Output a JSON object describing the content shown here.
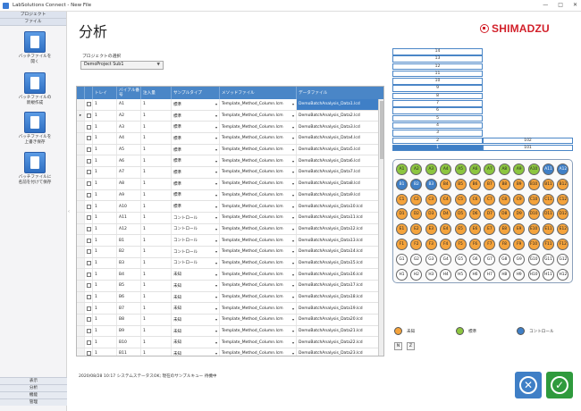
{
  "window": {
    "title": "LabSolutions Connect - New File",
    "controls": [
      "—",
      "□",
      "✕"
    ]
  },
  "sidebar": {
    "header": [
      "プロジェクト",
      "ファイル"
    ],
    "buttons": [
      {
        "label1": "バッチファイルを",
        "label2": "開く"
      },
      {
        "label1": "バッチファイルの",
        "label2": "新規作成"
      },
      {
        "label1": "バッチファイルを",
        "label2": "上書き保存"
      },
      {
        "label1": "バッチファイルに",
        "label2": "名前を付けて保存"
      }
    ],
    "footer": [
      "表示",
      "分析",
      "機能",
      "管理"
    ]
  },
  "page": {
    "title": "分析",
    "logo": "SHIMADZU",
    "project_label": "プロジェクトの選択",
    "project_value": "DemoProject Sub1"
  },
  "grid": {
    "columns": [
      "",
      "",
      "トレイ",
      "バイアル番号",
      "注入量",
      "サンプルタイプ",
      "メソッドファイル",
      "データファイル"
    ],
    "rows": [
      {
        "tray": "1",
        "vial": "A1",
        "inj": "1",
        "type": "標準",
        "method": "Template_Method_Column.lcm",
        "data": "DemoBatchAnalysis_Data1.lcd"
      },
      {
        "tray": "1",
        "vial": "A2",
        "inj": "1",
        "type": "標準",
        "method": "Template_Method_Column.lcm",
        "data": "DemoBatchAnalysis_Data2.lcd"
      },
      {
        "tray": "1",
        "vial": "A3",
        "inj": "1",
        "type": "標準",
        "method": "Template_Method_Column.lcm",
        "data": "DemoBatchAnalysis_Data3.lcd"
      },
      {
        "tray": "1",
        "vial": "A4",
        "inj": "1",
        "type": "標準",
        "method": "Template_Method_Column.lcm",
        "data": "DemoBatchAnalysis_Data4.lcd"
      },
      {
        "tray": "1",
        "vial": "A5",
        "inj": "1",
        "type": "標準",
        "method": "Template_Method_Column.lcm",
        "data": "DemoBatchAnalysis_Data5.lcd"
      },
      {
        "tray": "1",
        "vial": "A6",
        "inj": "1",
        "type": "標準",
        "method": "Template_Method_Column.lcm",
        "data": "DemoBatchAnalysis_Data6.lcd"
      },
      {
        "tray": "1",
        "vial": "A7",
        "inj": "1",
        "type": "標準",
        "method": "Template_Method_Column.lcm",
        "data": "DemoBatchAnalysis_Data7.lcd"
      },
      {
        "tray": "1",
        "vial": "A8",
        "inj": "1",
        "type": "標準",
        "method": "Template_Method_Column.lcm",
        "data": "DemoBatchAnalysis_Data8.lcd"
      },
      {
        "tray": "1",
        "vial": "A9",
        "inj": "1",
        "type": "標準",
        "method": "Template_Method_Column.lcm",
        "data": "DemoBatchAnalysis_Data9.lcd"
      },
      {
        "tray": "1",
        "vial": "A10",
        "inj": "1",
        "type": "標準",
        "method": "Template_Method_Column.lcm",
        "data": "DemoBatchAnalysis_Data10.lcd"
      },
      {
        "tray": "1",
        "vial": "A11",
        "inj": "1",
        "type": "コントロール",
        "method": "Template_Method_Column.lcm",
        "data": "DemoBatchAnalysis_Data11.lcd"
      },
      {
        "tray": "1",
        "vial": "A12",
        "inj": "1",
        "type": "コントロール",
        "method": "Template_Method_Column.lcm",
        "data": "DemoBatchAnalysis_Data12.lcd"
      },
      {
        "tray": "1",
        "vial": "B1",
        "inj": "1",
        "type": "コントロール",
        "method": "Template_Method_Column.lcm",
        "data": "DemoBatchAnalysis_Data13.lcd"
      },
      {
        "tray": "1",
        "vial": "B2",
        "inj": "1",
        "type": "コントロール",
        "method": "Template_Method_Column.lcm",
        "data": "DemoBatchAnalysis_Data14.lcd"
      },
      {
        "tray": "1",
        "vial": "B3",
        "inj": "1",
        "type": "コントロール",
        "method": "Template_Method_Column.lcm",
        "data": "DemoBatchAnalysis_Data15.lcd"
      },
      {
        "tray": "1",
        "vial": "B4",
        "inj": "1",
        "type": "未知",
        "method": "Template_Method_Column.lcm",
        "data": "DemoBatchAnalysis_Data16.lcd"
      },
      {
        "tray": "1",
        "vial": "B5",
        "inj": "1",
        "type": "未知",
        "method": "Template_Method_Column.lcm",
        "data": "DemoBatchAnalysis_Data17.lcd"
      },
      {
        "tray": "1",
        "vial": "B6",
        "inj": "1",
        "type": "未知",
        "method": "Template_Method_Column.lcm",
        "data": "DemoBatchAnalysis_Data18.lcd"
      },
      {
        "tray": "1",
        "vial": "B7",
        "inj": "1",
        "type": "未知",
        "method": "Template_Method_Column.lcm",
        "data": "DemoBatchAnalysis_Data19.lcd"
      },
      {
        "tray": "1",
        "vial": "B8",
        "inj": "1",
        "type": "未知",
        "method": "Template_Method_Column.lcm",
        "data": "DemoBatchAnalysis_Data20.lcd"
      },
      {
        "tray": "1",
        "vial": "B9",
        "inj": "1",
        "type": "未知",
        "method": "Template_Method_Column.lcm",
        "data": "DemoBatchAnalysis_Data21.lcd"
      },
      {
        "tray": "1",
        "vial": "B10",
        "inj": "1",
        "type": "未知",
        "method": "Template_Method_Column.lcm",
        "data": "DemoBatchAnalysis_Data22.lcd"
      },
      {
        "tray": "1",
        "vial": "B11",
        "inj": "1",
        "type": "未知",
        "method": "Template_Method_Column.lcm",
        "data": "DemoBatchAnalysis_Data23.lcd"
      }
    ]
  },
  "status": "2020/08/28 10:17 システムステータスOK; 現在のサンプルキュー 待機中",
  "rack": {
    "stack": [
      "14",
      "13",
      "12",
      "11",
      "10",
      "9",
      "8",
      "7",
      "6",
      "5",
      "4",
      "3",
      "2",
      "1"
    ],
    "stack_right": {
      "2": "102",
      "1": "101"
    }
  },
  "plate": {
    "rows": [
      "A",
      "B",
      "C",
      "D",
      "E",
      "F",
      "G",
      "H"
    ],
    "cols": 12,
    "colors": {
      "standard": "#8cc63f",
      "control": "#3f7fc6",
      "unknown": "#f5a33b",
      "empty": "#ffffff"
    }
  },
  "legend": [
    {
      "label": "未知",
      "color": "#f5a33b"
    },
    {
      "label": "標準",
      "color": "#8cc63f"
    },
    {
      "label": "コントロール",
      "color": "#3f7fc6"
    }
  ],
  "nz": [
    "N",
    "Z"
  ]
}
